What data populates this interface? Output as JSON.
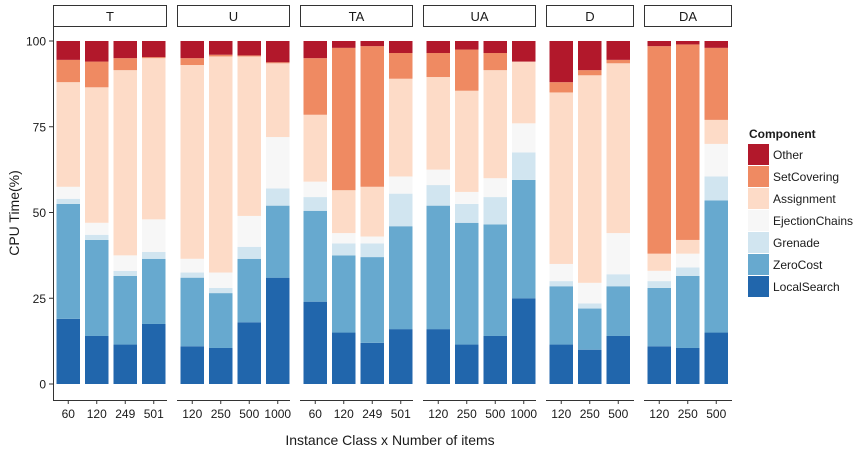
{
  "chart_data": {
    "type": "bar",
    "stacked": true,
    "faceted": true,
    "xlabel": "Instance Class x Number of items",
    "ylabel": "CPU Time(%)",
    "ylim": [
      0,
      100
    ],
    "yticks": [
      0,
      25,
      50,
      75,
      100
    ],
    "grid": false,
    "legend": {
      "title": "Component",
      "placement": "right"
    },
    "series": [
      {
        "name": "LocalSearch",
        "color": "#2166ac"
      },
      {
        "name": "ZeroCost",
        "color": "#67a9cf"
      },
      {
        "name": "Grenade",
        "color": "#d1e5f0"
      },
      {
        "name": "EjectionChains",
        "color": "#f7f7f7"
      },
      {
        "name": "Assignment",
        "color": "#fddbc7"
      },
      {
        "name": "SetCovering",
        "color": "#ef8a62"
      },
      {
        "name": "Other",
        "color": "#b2182b"
      }
    ],
    "panels": [
      {
        "label": "T",
        "bars": [
          {
            "x": "60",
            "values": [
              19,
              33.5,
              1.5,
              3.5,
              30.5,
              6.5,
              5.5
            ]
          },
          {
            "x": "120",
            "values": [
              14,
              28,
              1.5,
              3.5,
              39.5,
              7.5,
              6
            ]
          },
          {
            "x": "249",
            "values": [
              11.5,
              20,
              1.5,
              4.5,
              54,
              3.5,
              5
            ]
          },
          {
            "x": "501",
            "values": [
              17.5,
              19,
              2,
              9.5,
              47,
              0.3,
              4.7
            ]
          }
        ]
      },
      {
        "label": "U",
        "bars": [
          {
            "x": "120",
            "values": [
              11,
              20,
              1.5,
              4,
              56.5,
              2,
              5
            ]
          },
          {
            "x": "250",
            "values": [
              10.5,
              16,
              1.5,
              4.5,
              63,
              0.5,
              4
            ]
          },
          {
            "x": "500",
            "values": [
              18,
              18.5,
              3.5,
              9,
              46.5,
              0.3,
              4.2
            ]
          },
          {
            "x": "1000",
            "values": [
              31,
              21,
              5,
              15,
              21.5,
              0.3,
              6.2
            ]
          }
        ]
      },
      {
        "label": "TA",
        "bars": [
          {
            "x": "60",
            "values": [
              24,
              26.5,
              4,
              4.5,
              19.5,
              16.5,
              5
            ]
          },
          {
            "x": "120",
            "values": [
              15,
              22.5,
              3.5,
              3,
              12.5,
              41.5,
              2
            ]
          },
          {
            "x": "249",
            "values": [
              12,
              25,
              4,
              2,
              14.5,
              41,
              1.5
            ]
          },
          {
            "x": "501",
            "values": [
              16,
              30,
              9.5,
              5,
              28.5,
              7.5,
              3.5
            ]
          }
        ]
      },
      {
        "label": "UA",
        "bars": [
          {
            "x": "120",
            "values": [
              16,
              36,
              6,
              4.5,
              27,
              7,
              3.5
            ]
          },
          {
            "x": "250",
            "values": [
              11.5,
              35.5,
              5.5,
              3.5,
              29.5,
              12,
              2.5
            ]
          },
          {
            "x": "500",
            "values": [
              14,
              32.5,
              8,
              5.5,
              31.5,
              5,
              3.5
            ]
          },
          {
            "x": "1000",
            "values": [
              25,
              34.5,
              8,
              8.5,
              18,
              0,
              6
            ]
          }
        ]
      },
      {
        "label": "D",
        "bars": [
          {
            "x": "120",
            "values": [
              11.5,
              17,
              1.5,
              5,
              50,
              3,
              12
            ]
          },
          {
            "x": "250",
            "values": [
              10,
              12,
              1.5,
              6,
              60.5,
              1.5,
              8.5
            ]
          },
          {
            "x": "500",
            "values": [
              14,
              14.5,
              3.5,
              12,
              49.5,
              1,
              5.5
            ]
          }
        ]
      },
      {
        "label": "DA",
        "bars": [
          {
            "x": "120",
            "values": [
              11,
              17,
              2,
              3,
              5,
              60.5,
              1.5
            ]
          },
          {
            "x": "250",
            "values": [
              10.5,
              21,
              2.5,
              4,
              4,
              57,
              1
            ]
          },
          {
            "x": "500",
            "values": [
              15,
              38.5,
              7,
              9.5,
              7,
              21,
              2
            ]
          }
        ]
      }
    ]
  }
}
